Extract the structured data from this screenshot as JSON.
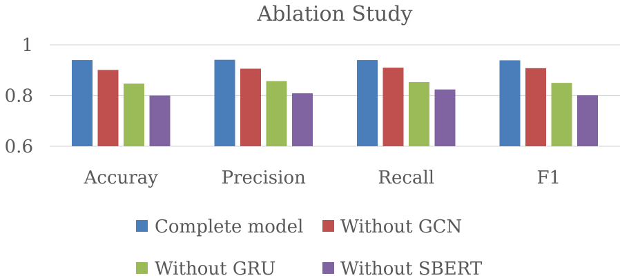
{
  "chart_data": {
    "type": "bar",
    "title": "Ablation Study",
    "xlabel": "",
    "ylabel": "",
    "ylim": [
      0.6,
      1.0
    ],
    "yticks": [
      "0.6",
      "0.8",
      "1"
    ],
    "grid": true,
    "legend_position": "bottom",
    "categories": [
      "Accuray",
      "Precision",
      "Recall",
      "F1"
    ],
    "series": [
      {
        "name": "Complete model",
        "color": "#4a7ebb",
        "values": [
          0.94,
          0.941,
          0.94,
          0.939
        ]
      },
      {
        "name": "Without GCN",
        "color": "#c0504d",
        "values": [
          0.901,
          0.906,
          0.91,
          0.908
        ]
      },
      {
        "name": "Without GRU",
        "color": "#9bbb59",
        "values": [
          0.847,
          0.857,
          0.853,
          0.85
        ]
      },
      {
        "name": "Without SBERT",
        "color": "#8064a2",
        "values": [
          0.8,
          0.809,
          0.824,
          0.801
        ]
      }
    ]
  }
}
